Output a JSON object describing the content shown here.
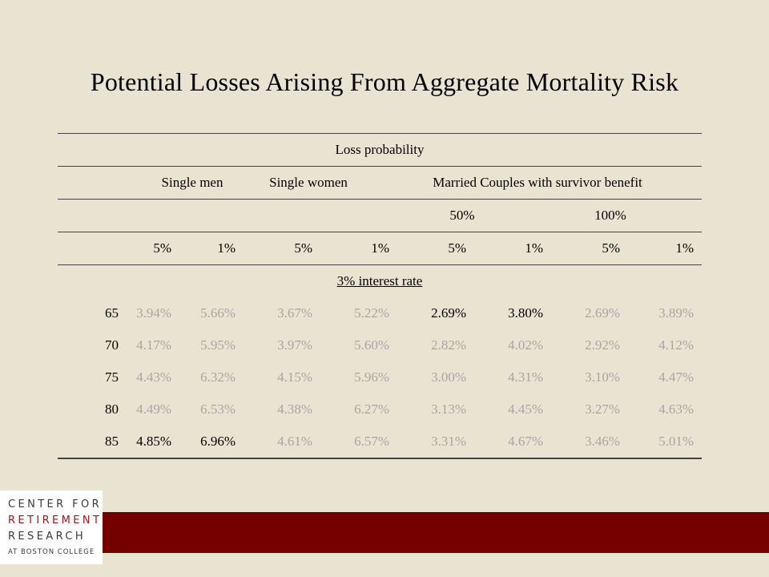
{
  "title": "Potential Losses Arising From Aggregate Mortality Risk",
  "table": {
    "header_loss": "Loss probability",
    "groups": {
      "single_men": "Single men",
      "single_women": "Single women",
      "married": "Married Couples with survivor benefit"
    },
    "benefit": {
      "b50": "50%",
      "b100": "100%"
    },
    "prob_cols": [
      "5%",
      "1%",
      "5%",
      "1%",
      "5%",
      "1%",
      "5%",
      "1%"
    ],
    "section_label": "3% interest rate",
    "rows": [
      {
        "age": "65",
        "values": [
          "3.94%",
          "5.66%",
          "3.67%",
          "5.22%",
          "2.69%",
          "3.80%",
          "2.69%",
          "3.89%"
        ]
      },
      {
        "age": "70",
        "values": [
          "4.17%",
          "5.95%",
          "3.97%",
          "5.60%",
          "2.82%",
          "4.02%",
          "2.92%",
          "4.12%"
        ]
      },
      {
        "age": "75",
        "values": [
          "4.43%",
          "6.32%",
          "4.15%",
          "5.96%",
          "3.00%",
          "4.31%",
          "3.10%",
          "4.47%"
        ]
      },
      {
        "age": "80",
        "values": [
          "4.49%",
          "6.53%",
          "4.38%",
          "6.27%",
          "3.13%",
          "4.45%",
          "3.27%",
          "4.63%"
        ]
      },
      {
        "age": "85",
        "values": [
          "4.85%",
          "6.96%",
          "4.61%",
          "6.57%",
          "3.31%",
          "4.67%",
          "3.46%",
          "5.01%"
        ]
      }
    ]
  },
  "logo": {
    "line1": "CENTER FOR",
    "line2": "RETIREMENT",
    "line3": "RESEARCH",
    "line4": "AT BOSTON COLLEGE"
  },
  "colors": {
    "background": "#e9e4d1",
    "footer_bar": "#750000",
    "logo_accent": "#a5161a",
    "faded_text": "#a6a6a6"
  }
}
